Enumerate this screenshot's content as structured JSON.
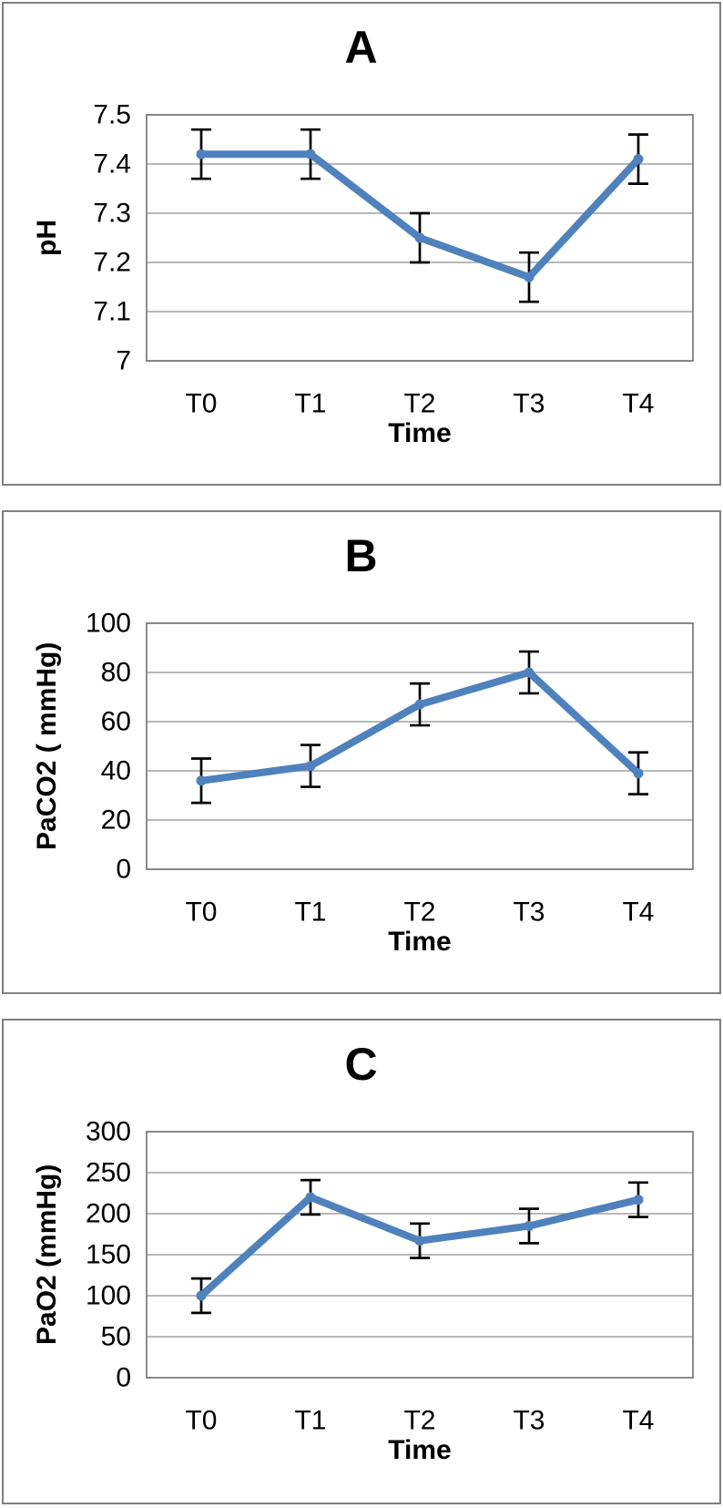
{
  "figure": {
    "description": "Three-panel line chart figure with error bars over time",
    "panel_labels": [
      "A",
      "B",
      "C"
    ]
  },
  "theme": {
    "background": "#FFFFFF",
    "line_color": "#4F81BD",
    "marker_color": "#4F81BD",
    "error_bar_color": "#000000",
    "gridline_color": "#A0A0A0",
    "plot_border_color": "#808080",
    "panel_border_color": "#808080",
    "text_color": "#000000"
  },
  "chart_data": [
    {
      "type": "line",
      "title": "A",
      "xlabel": "Time",
      "ylabel": "pH",
      "categories": [
        "T0",
        "T1",
        "T2",
        "T3",
        "T4"
      ],
      "series": [
        {
          "name": "pH",
          "values": [
            7.42,
            7.42,
            7.25,
            7.17,
            7.41
          ],
          "error_plus": [
            0.05,
            0.05,
            0.05,
            0.05,
            0.05
          ],
          "error_minus": [
            0.05,
            0.05,
            0.05,
            0.05,
            0.05
          ]
        }
      ],
      "ylim": [
        7,
        7.5
      ],
      "yticks": [
        7,
        7.1,
        7.2,
        7.3,
        7.4,
        7.5
      ],
      "ytick_labels": [
        "7",
        "7.1",
        "7.2",
        "7.3",
        "7.4",
        "7.5"
      ],
      "grid": true,
      "legend": "none"
    },
    {
      "type": "line",
      "title": "B",
      "xlabel": "Time",
      "ylabel": "PaCO2 ( mmHg)",
      "categories": [
        "T0",
        "T1",
        "T2",
        "T3",
        "T4"
      ],
      "series": [
        {
          "name": "PaCO2",
          "values": [
            36,
            42,
            67,
            80,
            39
          ],
          "error_plus": [
            9,
            8.5,
            8.5,
            8.5,
            8.5
          ],
          "error_minus": [
            9,
            8.5,
            8.5,
            8.5,
            8.5
          ]
        }
      ],
      "ylim": [
        0,
        100
      ],
      "yticks": [
        0,
        20,
        40,
        60,
        80,
        100
      ],
      "ytick_labels": [
        "0",
        "20",
        "40",
        "60",
        "80",
        "100"
      ],
      "grid": true,
      "legend": "none"
    },
    {
      "type": "line",
      "title": "C",
      "xlabel": "Time",
      "ylabel": "PaO2 (mmHg)",
      "categories": [
        "T0",
        "T1",
        "T2",
        "T3",
        "T4"
      ],
      "series": [
        {
          "name": "PaO2",
          "values": [
            100,
            220,
            167,
            185,
            217
          ],
          "error_plus": [
            21,
            21,
            21,
            21,
            21
          ],
          "error_minus": [
            21,
            21,
            21,
            21,
            21
          ]
        }
      ],
      "ylim": [
        0,
        300
      ],
      "yticks": [
        0,
        50,
        100,
        150,
        200,
        250,
        300
      ],
      "ytick_labels": [
        "0",
        "50",
        "100",
        "150",
        "200",
        "250",
        "300"
      ],
      "grid": true,
      "legend": "none"
    }
  ]
}
